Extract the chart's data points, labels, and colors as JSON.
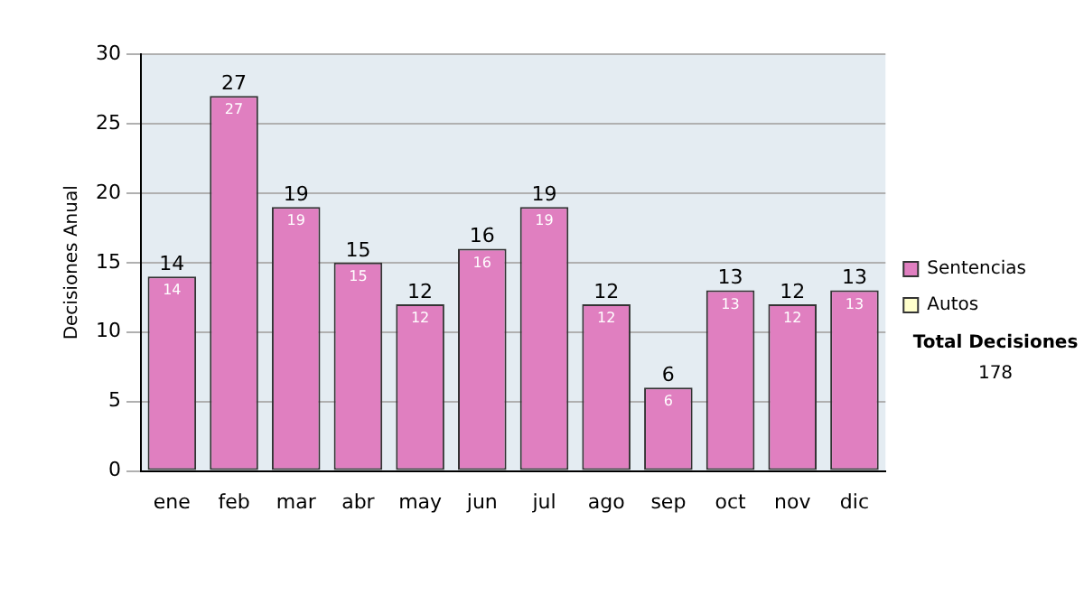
{
  "chart_data": {
    "type": "bar",
    "stacked": true,
    "ylabel": "Decisiones Anual",
    "categories": [
      "ene",
      "feb",
      "mar",
      "abr",
      "may",
      "jun",
      "jul",
      "ago",
      "sep",
      "oct",
      "nov",
      "dic"
    ],
    "series": [
      {
        "name": "Sentencias",
        "color": "#e07fc0",
        "values": [
          14,
          27,
          19,
          15,
          12,
          16,
          19,
          12,
          6,
          13,
          12,
          13
        ],
        "value_labels": [
          "14",
          "27",
          "19",
          "15",
          "12",
          "16",
          "19",
          "12",
          "6",
          "13",
          "12",
          "13"
        ]
      },
      {
        "name": "Autos",
        "color": "#ffffcc",
        "values": [
          0,
          0,
          0,
          0,
          0,
          0,
          0,
          0,
          0,
          0,
          0,
          0
        ],
        "value_labels": [
          null,
          null,
          null,
          null,
          null,
          null,
          null,
          null,
          null,
          null,
          null,
          null
        ]
      }
    ],
    "totals": [
      "14",
      "27",
      "19",
      "15",
      "12",
      "16",
      "19",
      "12",
      "6",
      "13",
      "12",
      "13"
    ],
    "ylim": [
      0,
      30
    ],
    "yticks": [
      0,
      5,
      10,
      15,
      20,
      25,
      30
    ],
    "grid": "y",
    "legend": "right",
    "annotations": [
      "Total Decisiones",
      "178"
    ]
  }
}
